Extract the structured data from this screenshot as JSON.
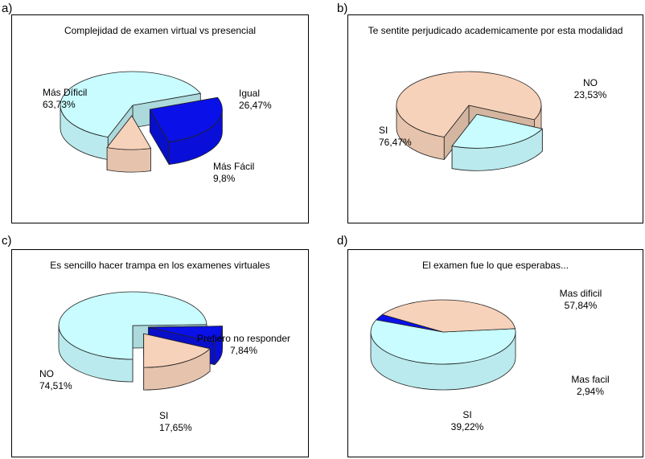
{
  "panels": [
    {
      "label": "a)",
      "title": "Complejidad de examen virtual vs presencial"
    },
    {
      "label": "b)",
      "title": "Te sentite perjudicado academicamente por esta modalidad"
    },
    {
      "label": "c)",
      "title": "Es sencillo hacer trampa en los examenes virtuales"
    },
    {
      "label": "d)",
      "title": "El examen fue lo que esperabas..."
    }
  ],
  "chart_data": [
    {
      "type": "pie",
      "title": "Complejidad de examen virtual vs presencial",
      "categories": [
        "Más Díficil",
        "Igual",
        "Más Fácil"
      ],
      "values": [
        63.73,
        26.47,
        9.8
      ],
      "value_labels": [
        "63,73%",
        "26,47%",
        "9,8%"
      ],
      "colors": [
        "#C8FCFF",
        "#0A10E8",
        "#F7D2BA"
      ]
    },
    {
      "type": "pie",
      "title": "Te sentite perjudicado academicamente por esta modalidad",
      "categories": [
        "SI",
        "NO"
      ],
      "values": [
        76.47,
        23.53
      ],
      "value_labels": [
        "76,47%",
        "23,53%"
      ],
      "colors": [
        "#F7D2BA",
        "#C8FCFF"
      ]
    },
    {
      "type": "pie",
      "title": "Es sencillo hacer trampa en los examenes virtuales",
      "categories": [
        "NO",
        "Prefiero no responder",
        "SI"
      ],
      "values": [
        74.51,
        7.84,
        17.65
      ],
      "value_labels": [
        "74,51%",
        "7,84%",
        "17,65%"
      ],
      "colors": [
        "#C8FCFF",
        "#0A10E8",
        "#F7D2BA"
      ]
    },
    {
      "type": "pie",
      "title": "El examen fue lo que esperabas...",
      "categories": [
        "Mas dificil",
        "Mas facil",
        "SI"
      ],
      "values": [
        57.84,
        2.94,
        39.22
      ],
      "value_labels": [
        "57,84%",
        "2,94%",
        "39,22%"
      ],
      "colors": [
        "#C8FCFF",
        "#0A10E8",
        "#F7D2BA"
      ]
    }
  ]
}
